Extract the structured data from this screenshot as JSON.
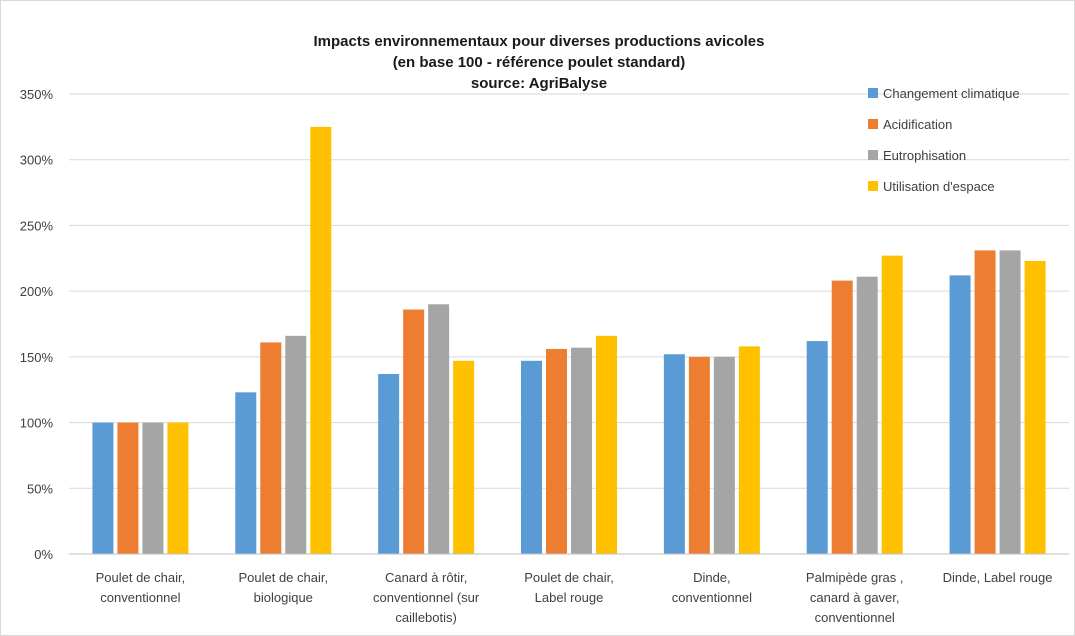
{
  "chart_data": {
    "type": "bar",
    "title_lines": [
      "Impacts environnementaux pour diverses productions avicoles",
      "(en base 100 - référence poulet standard)",
      "source: AgriBalyse"
    ],
    "xlabel": "",
    "ylabel": "",
    "ylim": [
      0,
      350
    ],
    "y_ticks": [
      "0%",
      "50%",
      "100%",
      "150%",
      "200%",
      "250%",
      "300%",
      "350%"
    ],
    "grid": true,
    "legend_position": "top-right",
    "categories": [
      [
        "Poulet de chair,",
        "conventionnel"
      ],
      [
        "Poulet de chair,",
        "biologique"
      ],
      [
        "Canard à rôtir,",
        "conventionnel (sur",
        "caillebotis)"
      ],
      [
        "Poulet de chair,",
        "Label rouge"
      ],
      [
        "Dinde,",
        "conventionnel"
      ],
      [
        "Palmipède gras ,",
        "canard à gaver,",
        "conventionnel"
      ],
      [
        "Dinde, Label rouge"
      ]
    ],
    "series": [
      {
        "name": "Changement climatique",
        "color": "#5b9bd5",
        "values": [
          100,
          123,
          137,
          147,
          152,
          162,
          212
        ]
      },
      {
        "name": "Acidification",
        "color": "#ed7d31",
        "values": [
          100,
          161,
          186,
          156,
          150,
          208,
          231
        ]
      },
      {
        "name": "Eutrophisation",
        "color": "#a5a5a5",
        "values": [
          100,
          166,
          190,
          157,
          150,
          211,
          231
        ]
      },
      {
        "name": "Utilisation d'espace",
        "color": "#ffc000",
        "values": [
          100,
          325,
          147,
          166,
          158,
          227,
          223
        ]
      }
    ]
  }
}
